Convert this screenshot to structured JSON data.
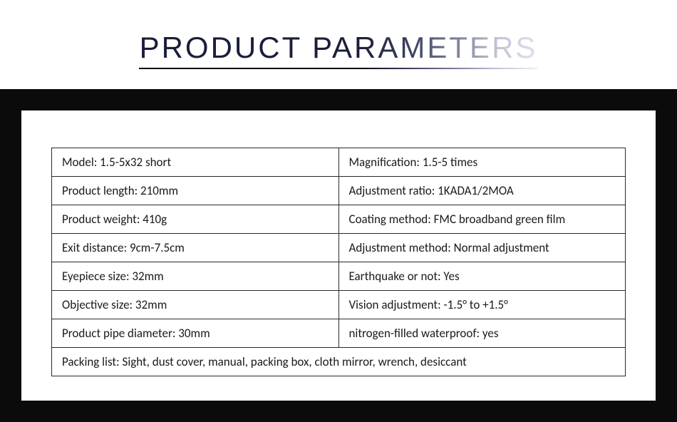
{
  "title": "PRODUCT PARAMETERS",
  "colors": {
    "title_gradient_start": "#1a1e3a",
    "title_gradient_end": "#e0e1ea",
    "underline_gradient_start": "#050711",
    "underline_gradient_end": "#eeeef3",
    "band_background": "#0b0b0c",
    "card_background": "#ffffff",
    "cell_border": "#2a2a2a",
    "cell_text": "#1a1a1a"
  },
  "typography": {
    "title_fontsize": 42,
    "title_letter_spacing": 3,
    "cell_fontsize": 17,
    "title_font": "Century Gothic",
    "cell_font": "Calibri"
  },
  "table": {
    "type": "table",
    "rows": [
      {
        "left": "Model: 1.5-5x32 short",
        "right": "Magnification: 1.5-5 times"
      },
      {
        "left": "Product length: 210mm",
        "right": "Adjustment ratio: 1KADA1/2MOA"
      },
      {
        "left": "Product weight: 410g",
        "right": "Coating method: FMC broadband green film"
      },
      {
        "left": "Exit distance: 9cm-7.5cm",
        "right": "Adjustment method: Normal adjustment"
      },
      {
        "left": "Eyepiece size: 32mm",
        "right": "Earthquake or not: Yes"
      },
      {
        "left": "Objective size: 32mm",
        "right": "Vision adjustment: -1.5° to +1.5°"
      },
      {
        "left": "Product pipe diameter: 30mm",
        "right": "nitrogen-filled waterproof: yes"
      }
    ],
    "full_row": "Packing list: Sight, dust cover, manual, packing box, cloth mirror, wrench, desiccant"
  }
}
